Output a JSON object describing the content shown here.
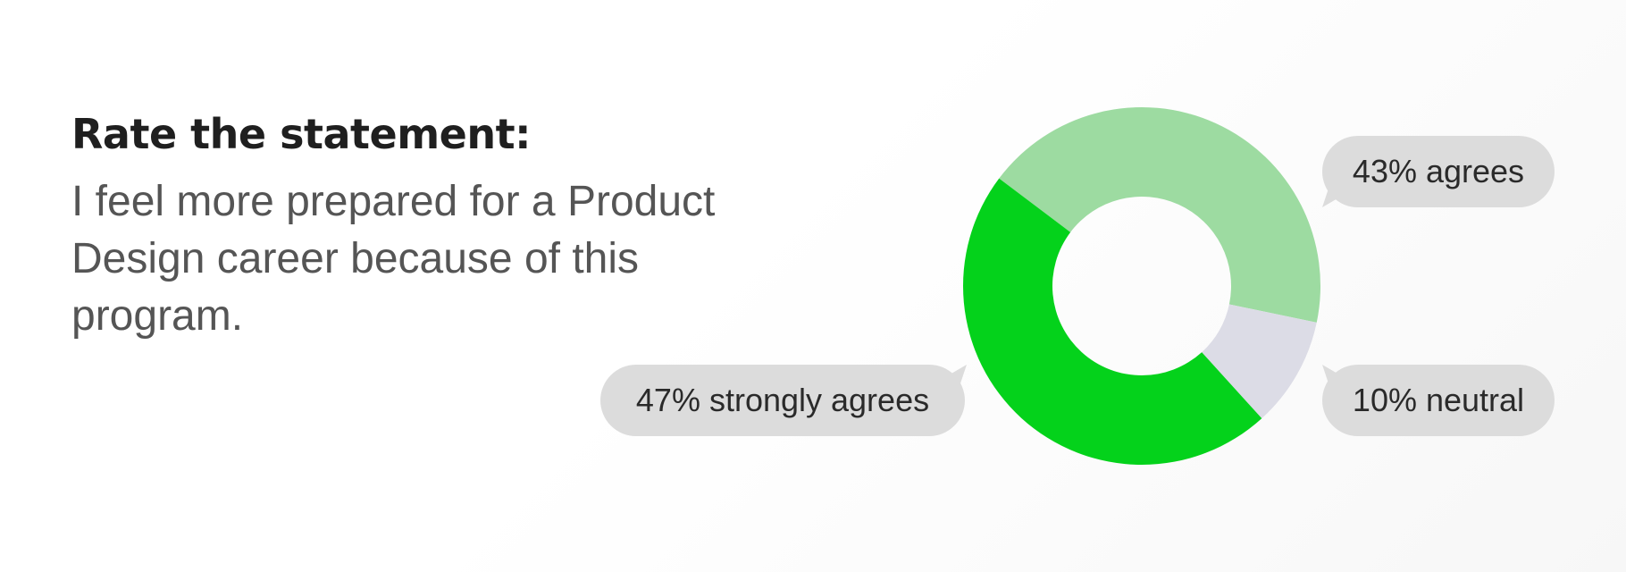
{
  "heading": "Rate the statement:",
  "statement": "I feel more prepared for a Product Design career because of this program.",
  "chart_data": {
    "type": "pie",
    "title": "",
    "slices": [
      {
        "label": "43% agrees",
        "value": 43,
        "color": "#9ddba1"
      },
      {
        "label": "10% neutral",
        "value": 10,
        "color": "#dcdce6"
      },
      {
        "label": "47% strongly agrees",
        "value": 47,
        "color": "#04d21b"
      }
    ],
    "label_style": "speech-bubble",
    "legend": "none"
  }
}
